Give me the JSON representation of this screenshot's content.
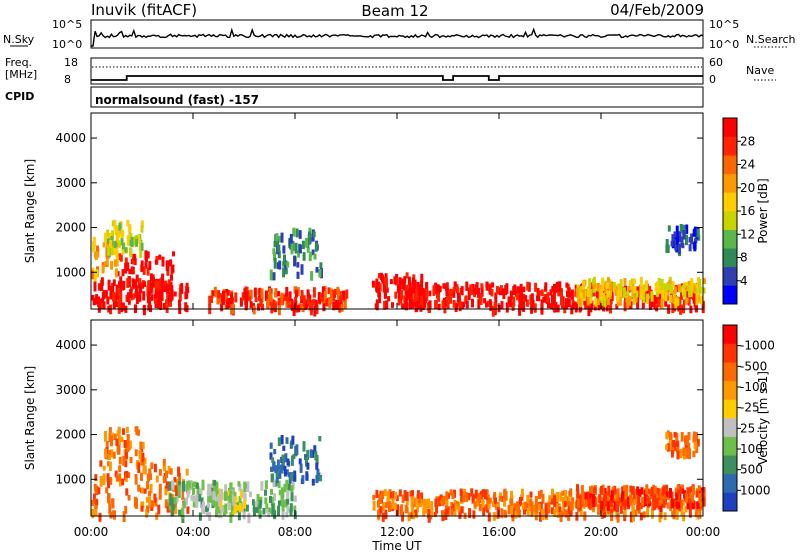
{
  "header": {
    "station": "Inuvik (fitACF)",
    "beam": "Beam 12",
    "date": "04/Feb/2009"
  },
  "noise_panel": {
    "left_label": "N.Sky",
    "right_label": "N.Search",
    "left_ticks": [
      "10^5",
      "10^0"
    ],
    "right_ticks": [
      "10^5",
      "10^0"
    ]
  },
  "freq_panel": {
    "left_label_1": "Freq.",
    "left_label_2": "[MHz]",
    "right_label": "Nave",
    "left_ticks": [
      "18",
      "8"
    ],
    "right_ticks": [
      "60",
      "0"
    ]
  },
  "cpid_panel": {
    "label": "CPID",
    "text": "normalsound (fast) -157"
  },
  "time_axis": {
    "xlabel": "Time UT",
    "ticks": [
      "00:00",
      "04:00",
      "08:00",
      "12:00",
      "16:00",
      "20:00",
      "00:00"
    ],
    "range_hours": [
      0,
      24
    ]
  },
  "chart_data": [
    {
      "type": "heatmap",
      "title": "",
      "ylabel": "Slant Range [km]",
      "xlabel": "",
      "x_range_hours": [
        0,
        24
      ],
      "ylim": [
        180,
        4560
      ],
      "yticks": [
        1000,
        2000,
        3000,
        4000
      ],
      "colorbar": {
        "label": "Power [dB]",
        "ticks": [
          "4",
          "8",
          "12",
          "16",
          "20",
          "24",
          "28"
        ],
        "colors": [
          "#0000ff",
          "#2f3fb3",
          "#2e8b57",
          "#5ab84a",
          "#c8d400",
          "#ffcc00",
          "#ff9900",
          "#ff6600",
          "#ff2200",
          "#ff0000"
        ]
      },
      "regions": [
        {
          "t": [
            0.0,
            3.8
          ],
          "r": [
            250,
            900
          ],
          "level": 9
        },
        {
          "t": [
            1.0,
            3.2
          ],
          "r": [
            600,
            1500
          ],
          "level": 9
        },
        {
          "t": [
            0.0,
            1.0
          ],
          "r": [
            1000,
            1900
          ],
          "level": 6
        },
        {
          "t": [
            0.5,
            2.0
          ],
          "r": [
            1500,
            2200
          ],
          "level": 4
        },
        {
          "t": [
            4.5,
            10.0
          ],
          "r": [
            250,
            700
          ],
          "level": 8
        },
        {
          "t": [
            7.0,
            9.0
          ],
          "r": [
            1000,
            2000
          ],
          "level": 2
        },
        {
          "t": [
            11.0,
            13.0
          ],
          "r": [
            300,
            1000
          ],
          "level": 9
        },
        {
          "t": [
            12.0,
            24.0
          ],
          "r": [
            250,
            800
          ],
          "level": 9
        },
        {
          "t": [
            19.0,
            24.0
          ],
          "r": [
            400,
            900
          ],
          "level": 5
        },
        {
          "t": [
            22.5,
            23.8
          ],
          "r": [
            1600,
            2100
          ],
          "level": 1
        }
      ]
    },
    {
      "type": "heatmap",
      "title": "",
      "ylabel": "Slant Range [km]",
      "xlabel": "Time UT",
      "x_range_hours": [
        0,
        24
      ],
      "ylim": [
        180,
        4560
      ],
      "yticks": [
        1000,
        2000,
        3000,
        4000
      ],
      "colorbar": {
        "label": "Velocity [m s-1]",
        "ticks": [
          "1000",
          "500",
          "100",
          "25",
          "-25",
          "-100",
          "-500",
          "-1000"
        ],
        "colors": [
          "#1e3fbf",
          "#2e6ab0",
          "#3c8f5e",
          "#6cc04a",
          "#c0c0c0",
          "#ffcc00",
          "#ff9900",
          "#ff6a00",
          "#ff3300",
          "#ff0000"
        ]
      },
      "regions": [
        {
          "t": [
            0.0,
            3.8
          ],
          "r": [
            250,
            1500
          ],
          "level": 7
        },
        {
          "t": [
            0.5,
            2.0
          ],
          "r": [
            1500,
            2200
          ],
          "level": 7
        },
        {
          "t": [
            3.0,
            8.0
          ],
          "r": [
            250,
            1000
          ],
          "level": 3
        },
        {
          "t": [
            4.5,
            6.0
          ],
          "r": [
            400,
            800
          ],
          "level": 4
        },
        {
          "t": [
            7.0,
            9.0
          ],
          "r": [
            1000,
            2000
          ],
          "level": 1
        },
        {
          "t": [
            11.0,
            24.0
          ],
          "r": [
            250,
            800
          ],
          "level": 7
        },
        {
          "t": [
            19.0,
            24.0
          ],
          "r": [
            500,
            900
          ],
          "level": 8
        },
        {
          "t": [
            22.5,
            23.8
          ],
          "r": [
            1600,
            2100
          ],
          "level": 7
        }
      ]
    }
  ]
}
